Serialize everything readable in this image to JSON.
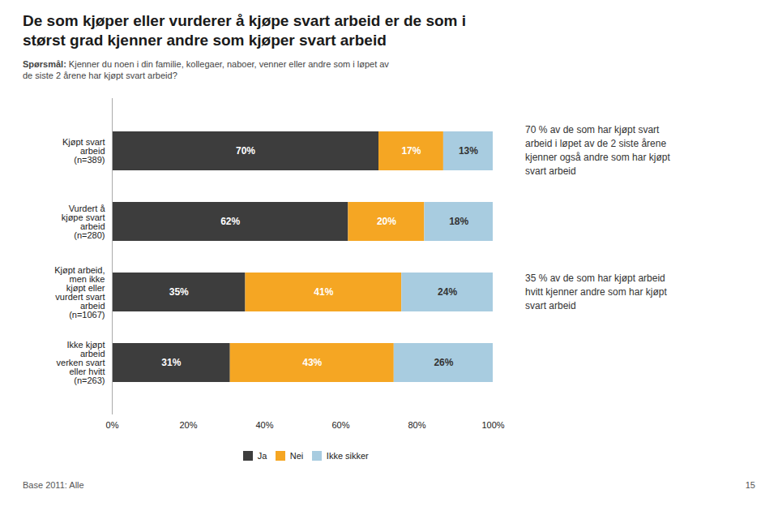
{
  "chart_data": {
    "type": "bar",
    "orientation": "horizontal",
    "stacked": true,
    "data_labels": true,
    "grid": false,
    "legend": "bottom",
    "title": "De som kjøper eller vurderer å kjøpe svart arbeid er de som i\nstørst grad kjenner andre som kjøper svart arbeid",
    "subtitle": "Spørsmål: Kjenner du noen i din familie, kollegaer, naboer, venner eller andre som i løpet av\nde siste 2 årene har kjøpt svart arbeid?",
    "annotations": [
      "70 % av de som har kjøpt svart\narbeid i løpet av de 2 siste årene\nkjenner også andre som har kjøpt\nsvart arbeid",
      "35 % av de som har kjøpt arbeid\nhvitt kjenner andre som har kjøpt\nsvart arbeid",
      "Base 2011: Alle",
      "15"
    ],
    "categories": [
      "Kjøpt svart\narbeid\n(n=389)",
      "Vurdert å\nkjøpe svart\narbeid\n(n=280)",
      "Kjøpt arbeid,\nmen ikke\nkjøpt eller\nvurdert svart\narbeid\n(n=1067)",
      "Ikke kjøpt\narbeid\nverken svart\neller hvitt\n(n=263)"
    ],
    "series": [
      {
        "name": "Ja",
        "color": "#3d3d3d",
        "values": [
          70,
          62,
          35,
          31
        ],
        "value_labels": [
          "70%",
          "62%",
          "35%",
          "31%"
        ]
      },
      {
        "name": "Nei",
        "color": "#f5a623",
        "values": [
          17,
          20,
          41,
          43
        ],
        "value_labels": [
          "17%",
          "20%",
          "41%",
          "43%"
        ]
      },
      {
        "name": "Ikke sikker",
        "color": "#a8cce0",
        "values": [
          13,
          18,
          24,
          26
        ],
        "value_labels": [
          "13%",
          "18%",
          "24%",
          "26%"
        ]
      }
    ],
    "xlim": [
      0,
      100
    ],
    "xticks": [
      {
        "value": 0,
        "label": "0%"
      },
      {
        "value": 20,
        "label": "20%"
      },
      {
        "value": 40,
        "label": "40%"
      },
      {
        "value": 60,
        "label": "60%"
      },
      {
        "value": 80,
        "label": "80%"
      },
      {
        "value": 100,
        "label": "100%"
      }
    ]
  }
}
